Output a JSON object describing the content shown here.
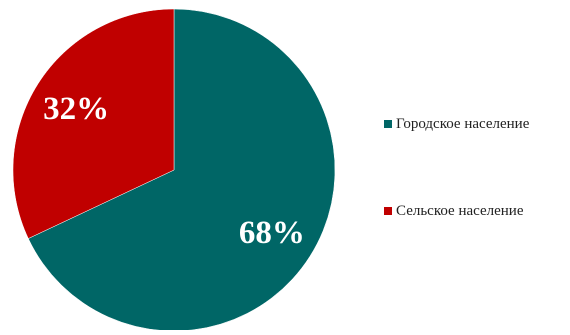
{
  "chart_data": {
    "type": "pie",
    "categories": [
      "Городское население",
      "Сельское население"
    ],
    "values": [
      68,
      32
    ],
    "labels": [
      "68%",
      "32%"
    ],
    "colors": [
      "#006666",
      "#c00000"
    ],
    "start_angle_deg": 0,
    "direction": "clockwise",
    "legend_position": "right"
  },
  "legend": {
    "items": [
      {
        "label": "Городское население",
        "color": "#006666"
      },
      {
        "label": "Сельское население",
        "color": "#c00000"
      }
    ]
  }
}
